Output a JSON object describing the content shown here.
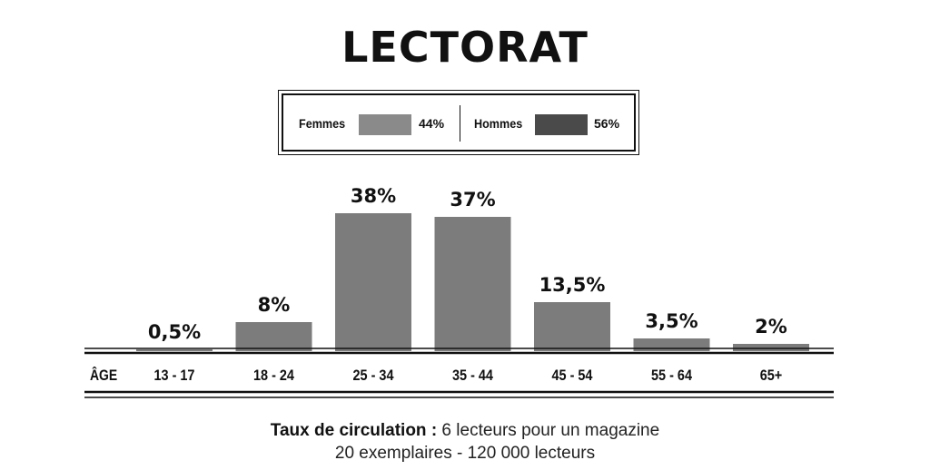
{
  "title": "LECTORAT",
  "legend": {
    "female": {
      "label": "Femmes",
      "percent": "44%",
      "color": "#8a8a8a"
    },
    "male": {
      "label": "Hommes",
      "percent": "56%",
      "color": "#4a4a4a"
    }
  },
  "chart_data": {
    "type": "bar",
    "title": "LECTORAT",
    "xlabel": "ÂGE",
    "ylabel": "",
    "categories": [
      "13 - 17",
      "18 - 24",
      "25 - 34",
      "35 - 44",
      "45 - 54",
      "55 - 64",
      "65+"
    ],
    "values": [
      0.5,
      8,
      38,
      37,
      13.5,
      3.5,
      2
    ],
    "value_labels": [
      "0,5%",
      "8%",
      "38%",
      "37%",
      "13,5%",
      "3,5%",
      "2%"
    ],
    "ylim": [
      0,
      40
    ],
    "bar_color": "#7c7c7c",
    "grid": false,
    "legend_placement": "top-center"
  },
  "caption": {
    "line1_bold": "Taux de circulation :",
    "line1_rest": " 6 lecteurs pour un magazine",
    "line2": "20 exemplaires - 120 000 lecteurs"
  }
}
